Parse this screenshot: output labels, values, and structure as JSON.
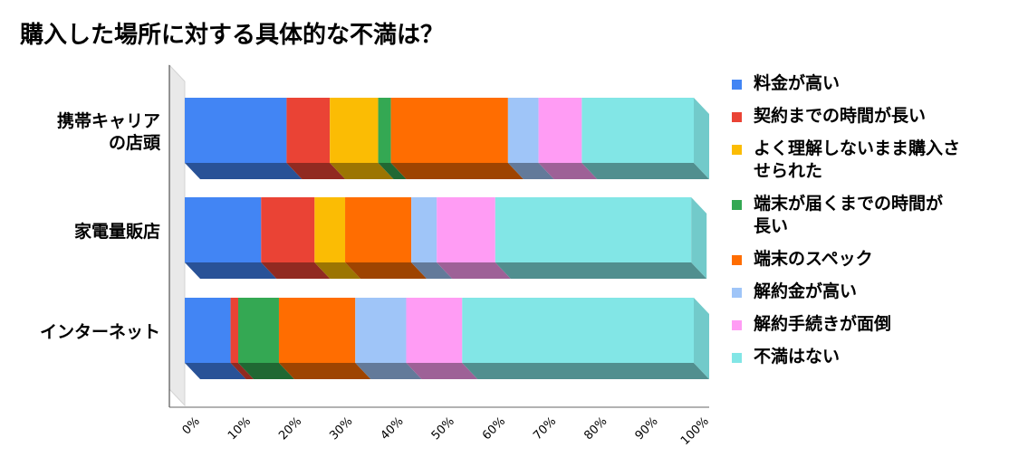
{
  "chart_data": {
    "type": "bar",
    "orientation": "horizontal",
    "stacked": true,
    "percent_stacked": true,
    "three_d": true,
    "title": "購入した場所に対する具体的な不満は？",
    "categories": [
      "携帯キャリアの店頭",
      "家電量販店",
      "インターネット"
    ],
    "category_display_lines": [
      [
        "携帯キャリア",
        "の店頭"
      ],
      [
        "家電量販店"
      ],
      [
        "インターネット"
      ]
    ],
    "xlim": [
      0,
      100
    ],
    "x_ticks": [
      "0%",
      "10%",
      "20%",
      "30%",
      "40%",
      "50%",
      "60%",
      "70%",
      "80%",
      "90%",
      "100%"
    ],
    "legend_position": "right",
    "series": [
      {
        "name": "料金が高い",
        "color": "#4285F4",
        "values": [
          20,
          15,
          9
        ]
      },
      {
        "name": "契約までの時間が長い",
        "color": "#EA4335",
        "values": [
          8.5,
          10.5,
          1.5
        ]
      },
      {
        "name": "よく理解しないまま購入させられた",
        "color": "#FBBC04",
        "values": [
          9.5,
          6,
          0
        ]
      },
      {
        "name": "端末が届くまでの時間が長い",
        "color": "#34A853",
        "values": [
          2.5,
          0,
          8
        ]
      },
      {
        "name": "端末のスペック",
        "color": "#FF6D01",
        "values": [
          23,
          13,
          15
        ]
      },
      {
        "name": "解約金が高い",
        "color": "#9FC5F8",
        "values": [
          6,
          5,
          10
        ]
      },
      {
        "name": "解約手続きが面倒",
        "color": "#FF9CF4",
        "values": [
          8.5,
          11.5,
          11
        ]
      },
      {
        "name": "不満はない",
        "color": "#82E6E6",
        "values": [
          22,
          38.5,
          45.5
        ]
      }
    ],
    "legend_display_lines": [
      [
        "料金が高い"
      ],
      [
        "契約までの時間が長い"
      ],
      [
        "よく理解しないまま購入さ",
        "せられた"
      ],
      [
        "端末が届くまでの時間が",
        "長い"
      ],
      [
        "端末のスペック"
      ],
      [
        "解約金が高い"
      ],
      [
        "解約手続きが面倒"
      ],
      [
        "不満はない"
      ]
    ]
  }
}
